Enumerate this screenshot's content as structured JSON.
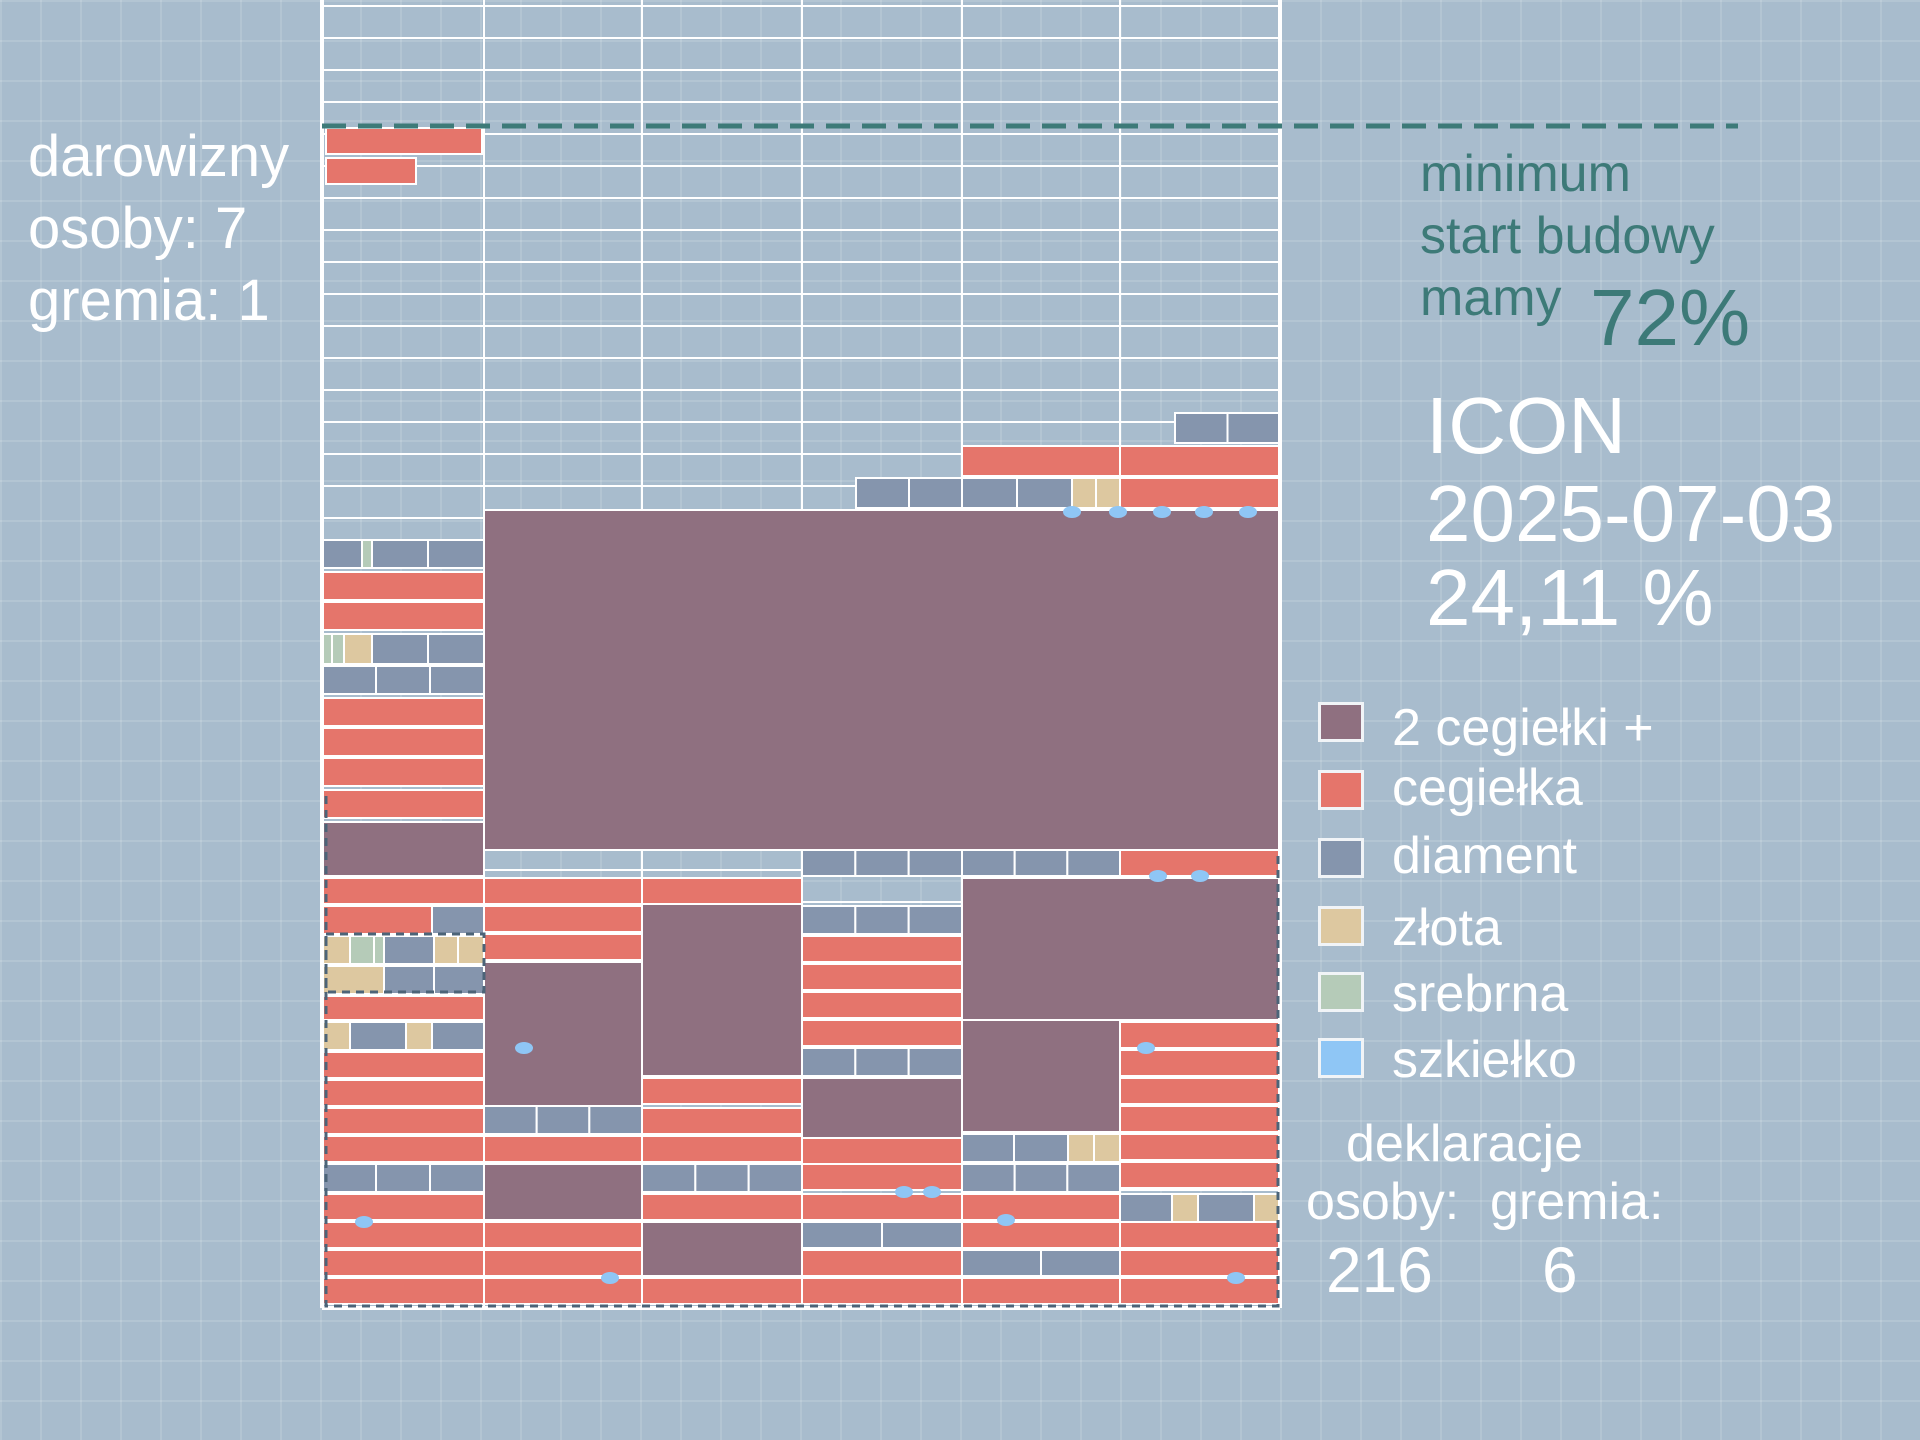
{
  "donations": {
    "title": "darowizny",
    "persons_text": "osoby: 7",
    "groups_text": "gremia: 1"
  },
  "minimum": {
    "line1": "minimum",
    "line2": "start budowy",
    "line3": "mamy",
    "percent": "72%"
  },
  "status": {
    "name": "ICON",
    "date": "2025-07-03",
    "percent": "24,11 %"
  },
  "legend": [
    {
      "key": "plus",
      "label": "2 cegiełki +",
      "color": "#8f7080"
    },
    {
      "key": "cegielka",
      "label": "cegiełka",
      "color": "#e5756b"
    },
    {
      "key": "diament",
      "label": "diament",
      "color": "#8595ad"
    },
    {
      "key": "zlota",
      "label": "złota",
      "color": "#ddc8a0"
    },
    {
      "key": "srebrna",
      "label": "srebrna",
      "color": "#b5cbb8"
    },
    {
      "key": "szkielko",
      "label": "szkiełko",
      "color": "#8fc6f5"
    }
  ],
  "declarations": {
    "title": "deklaracje",
    "persons_label": "osoby:",
    "groups_label": "gremia:",
    "persons_value": "216",
    "groups_value": "6"
  },
  "colors": {
    "grid": "#ffffff",
    "minimum_line": "#3d7a78",
    "minimum_text": "#3d7a78"
  },
  "progress": {
    "minimum_percent": 72,
    "current_percent": 24.11
  }
}
